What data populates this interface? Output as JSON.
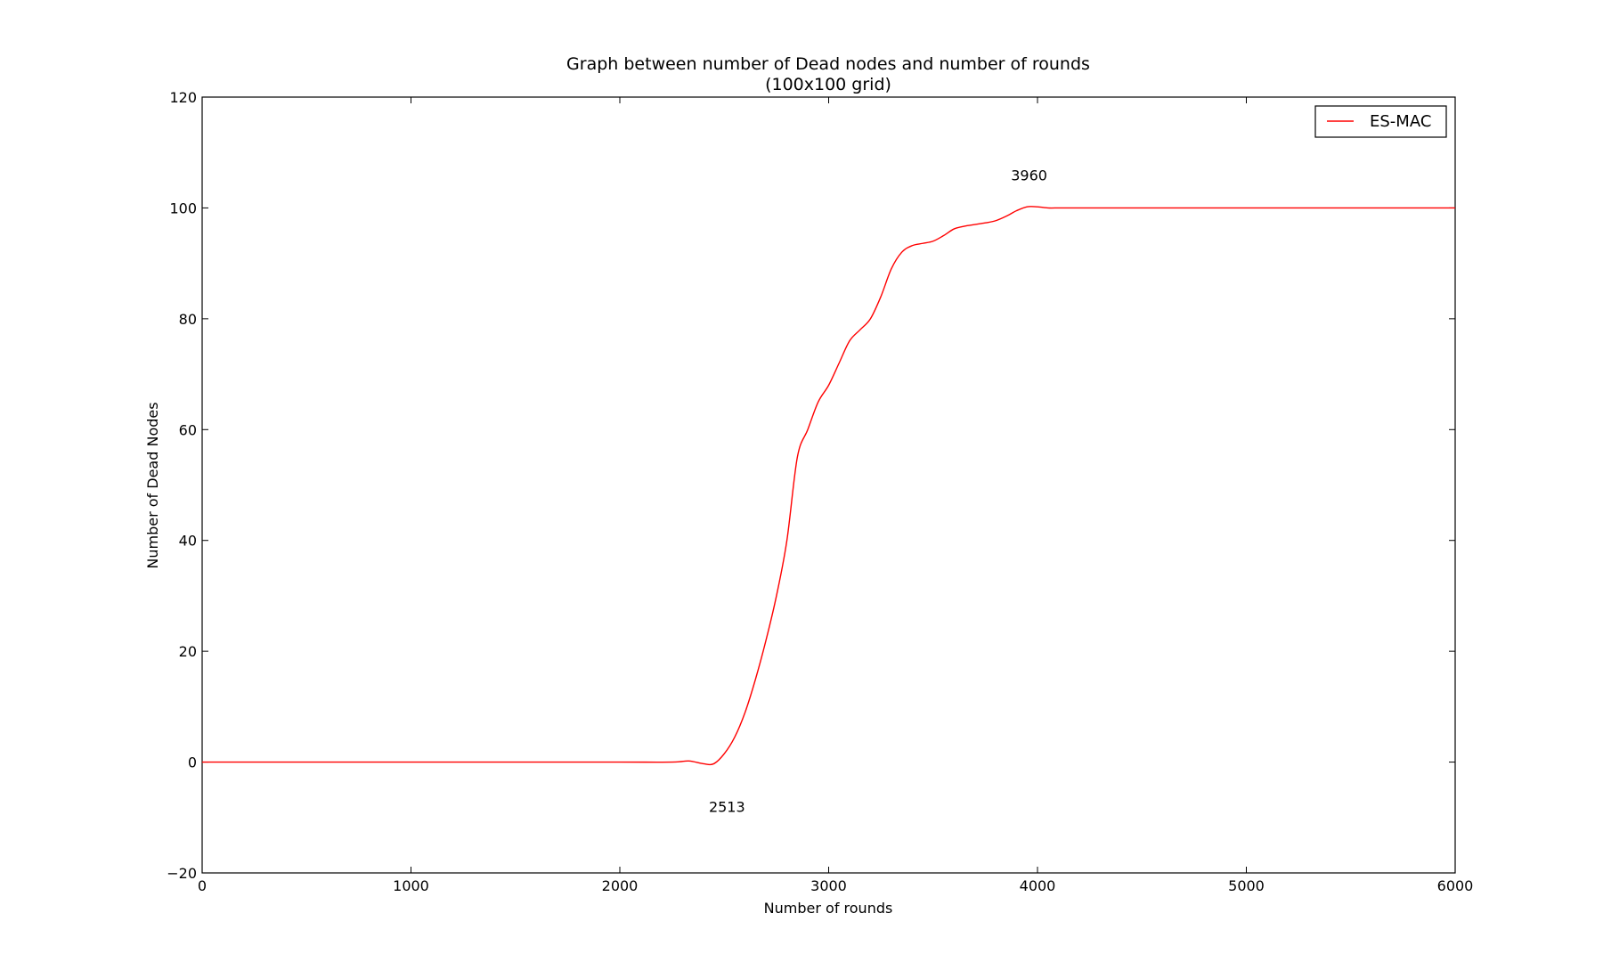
{
  "chart_data": {
    "type": "line",
    "title": "Graph between number of Dead nodes and number of rounds",
    "subtitle": "(100x100 grid)",
    "xlabel": "Number of rounds",
    "ylabel": "Number of Dead Nodes",
    "xlim": [
      0,
      6000
    ],
    "ylim": [
      -20,
      120
    ],
    "xticks": [
      0,
      1000,
      2000,
      3000,
      4000,
      5000,
      6000
    ],
    "yticks": [
      -20,
      0,
      20,
      40,
      60,
      80,
      100,
      120
    ],
    "xtick_labels": [
      "0",
      "1000",
      "2000",
      "3000",
      "4000",
      "5000",
      "6000"
    ],
    "ytick_labels": [
      "−20",
      "0",
      "20",
      "40",
      "60",
      "80",
      "100",
      "120"
    ],
    "grid": false,
    "legend_position": "top-right",
    "series": [
      {
        "name": "ES-MAC",
        "color": "#ff0000",
        "x": [
          0,
          500,
          1000,
          1500,
          2000,
          2250,
          2330,
          2400,
          2450,
          2500,
          2550,
          2600,
          2650,
          2700,
          2750,
          2800,
          2850,
          2900,
          2950,
          3000,
          3050,
          3100,
          3150,
          3200,
          3250,
          3300,
          3350,
          3400,
          3450,
          3500,
          3550,
          3600,
          3650,
          3700,
          3750,
          3800,
          3850,
          3900,
          3950,
          4000,
          4050,
          4100,
          4150,
          4300,
          5000,
          6000
        ],
        "y": [
          0,
          0,
          0,
          0,
          0,
          0,
          0.2,
          -0.3,
          -0.3,
          1.5,
          4.5,
          9,
          15,
          22,
          30,
          40,
          55,
          60,
          65,
          68,
          72,
          76,
          78,
          80,
          84,
          89,
          92,
          93.2,
          93.6,
          94,
          95,
          96.2,
          96.7,
          97,
          97.3,
          97.7,
          98.5,
          99.5,
          100.2,
          100.2,
          100,
          100,
          100,
          100,
          100,
          100
        ]
      }
    ],
    "annotations": [
      {
        "text": "3960",
        "x": 3960,
        "y": 105
      },
      {
        "text": "2513",
        "x": 2513,
        "y": -9
      }
    ]
  }
}
